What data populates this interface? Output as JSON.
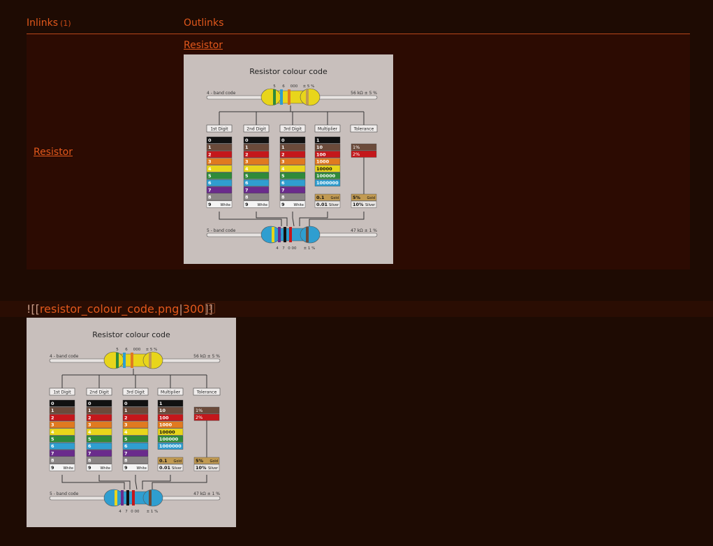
{
  "backlinks": {
    "inlinks_header": "Inlinks",
    "inlinks_count": "(1)",
    "outlinks_header": "Outlinks",
    "inlink_item": "Resistor",
    "outlink_item": "Resistor"
  },
  "editor": {
    "prefix": "![[",
    "filename": "resistor_colour_code.png",
    "pipe": "|",
    "size": "300",
    "suffix": "]]",
    "badge": "1"
  },
  "image": {
    "title": "Resistor colour code",
    "top_band_label": "4 - band code",
    "top_value": "56 kΩ ± 5 %",
    "top_digits": [
      "5",
      "6",
      "000",
      "± 5 %"
    ],
    "bottom_band_label": "5 - band code",
    "bottom_value": "47 kΩ ± 1 %",
    "bottom_digits": [
      "4",
      "7",
      "0",
      "00",
      "± 1 %"
    ],
    "columns": [
      "1st Digit",
      "2nd Digit",
      "3rd Digit",
      "Multiplier",
      "Tolerance"
    ],
    "digit_rows": [
      "0",
      "1",
      "2",
      "3",
      "4",
      "5",
      "6",
      "7",
      "8",
      "9"
    ],
    "white_label": "White",
    "multiplier_rows": [
      "1",
      "10",
      "100",
      "1000",
      "10000",
      "100000",
      "1000000"
    ],
    "multiplier_gold": [
      "0.1",
      "Gold"
    ],
    "multiplier_silver": [
      "0.01",
      "Silver"
    ],
    "tolerance_rows": [
      "1%",
      "2%"
    ],
    "tolerance_gold": [
      "5%",
      "Gold"
    ],
    "tolerance_silver": [
      "10%",
      "Silver"
    ],
    "colors": {
      "bg": "#c8bfbc",
      "black": "#111111",
      "brown": "#6b4a3a",
      "red": "#c4171b",
      "orange": "#e07a20",
      "yellow": "#e8d51b",
      "green": "#2f8a3a",
      "blue": "#2f9ed0",
      "violet": "#6a2b8c",
      "grey": "#8a8585",
      "white": "#f4f4f4",
      "gold": "#c19a52"
    }
  }
}
